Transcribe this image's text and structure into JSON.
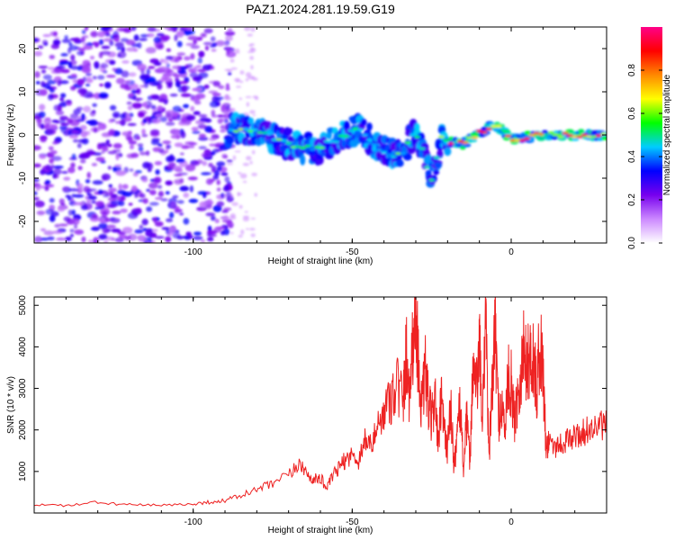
{
  "title": "PAZ1.2024.281.19.59.G19",
  "chart_data": [
    {
      "type": "heatmap",
      "xlabel": "Height of straight line (km)",
      "ylabel": "Frequency (Hz)",
      "xlim": [
        -150,
        30
      ],
      "ylim": [
        -25,
        25
      ],
      "xticks": [
        -100,
        -50,
        0
      ],
      "xtick_labels": [
        "-100",
        "-50",
        "0"
      ],
      "yticks": [
        -20,
        -10,
        0,
        10,
        20
      ],
      "ytick_labels": [
        "-20",
        "-10",
        "0",
        "10",
        "20"
      ],
      "colorbar": {
        "label": "Normalized spectral amplitude",
        "range": [
          0,
          1
        ],
        "ticks": [
          0.0,
          0.2,
          0.4,
          0.6,
          0.8
        ],
        "tick_labels": [
          "0.0",
          "0.2",
          "0.4",
          "0.6",
          "0.8"
        ],
        "colors": [
          "#ffffff",
          "#cc88ff",
          "#7700ee",
          "#0000ff",
          "#00ccff",
          "#00ff00",
          "#ffff00",
          "#ff8800",
          "#ff0000",
          "#ff0088"
        ]
      },
      "ridge": [
        {
          "x": -88,
          "y": 1.5
        },
        {
          "x": -80,
          "y": 1.0
        },
        {
          "x": -70,
          "y": -2.0
        },
        {
          "x": -62,
          "y": -3.5
        },
        {
          "x": -55,
          "y": -1.0
        },
        {
          "x": -48,
          "y": 1.5
        },
        {
          "x": -42,
          "y": -3.0
        },
        {
          "x": -35,
          "y": -5.0
        },
        {
          "x": -30,
          "y": 1.0
        },
        {
          "x": -25,
          "y": -10.5
        },
        {
          "x": -22,
          "y": -1.0
        },
        {
          "x": -15,
          "y": -2.0
        },
        {
          "x": -10,
          "y": 0.5
        },
        {
          "x": -5,
          "y": 2.5
        },
        {
          "x": 0,
          "y": -1.0
        },
        {
          "x": 10,
          "y": 0.0
        },
        {
          "x": 20,
          "y": 0.0
        },
        {
          "x": 30,
          "y": 0.0
        }
      ]
    },
    {
      "type": "line",
      "xlabel": "Height of straight line (km)",
      "ylabel": "SNR (10 * v/v)",
      "xlim": [
        -150,
        30
      ],
      "ylim": [
        0,
        5200
      ],
      "xticks": [
        -100,
        -50,
        0
      ],
      "xtick_labels": [
        "-100",
        "-50",
        "0"
      ],
      "yticks": [
        1000,
        2000,
        3000,
        4000,
        5000
      ],
      "ytick_labels": [
        "1000",
        "2000",
        "3000",
        "4000",
        "5000"
      ],
      "series": [
        {
          "color": "#ee2222",
          "x": [
            -150,
            -140,
            -130,
            -120,
            -110,
            -100,
            -95,
            -90,
            -85,
            -80,
            -75,
            -70,
            -66,
            -64,
            -62,
            -60,
            -58,
            -56,
            -54,
            -52,
            -50,
            -48,
            -46,
            -44,
            -42,
            -40,
            -38,
            -36,
            -34,
            -33,
            -32,
            -31,
            -30,
            -29,
            -28,
            -27,
            -26,
            -25,
            -24,
            -23,
            -22,
            -21,
            -20,
            -19,
            -18,
            -17,
            -16,
            -15,
            -14,
            -13,
            -12,
            -11,
            -10,
            -9,
            -8,
            -7,
            -6,
            -5,
            -4,
            -3,
            -2,
            -1,
            0,
            1,
            2,
            3,
            4,
            5,
            6,
            7,
            8,
            9,
            10,
            11,
            12,
            14,
            16,
            18,
            20,
            22,
            24,
            26,
            28,
            30
          ],
          "y": [
            200,
            180,
            250,
            200,
            180,
            220,
            260,
            300,
            420,
            560,
            700,
            900,
            1200,
            900,
            800,
            850,
            600,
            900,
            1100,
            1300,
            1400,
            1250,
            1800,
            1600,
            2100,
            2400,
            2800,
            3200,
            2600,
            3900,
            2900,
            4100,
            4950,
            3300,
            2500,
            3400,
            2600,
            2200,
            3000,
            1500,
            2700,
            1900,
            1600,
            2500,
            1200,
            1800,
            2600,
            1100,
            2200,
            1300,
            3500,
            2800,
            4000,
            2200,
            5150,
            1200,
            3000,
            4500,
            2300,
            2600,
            2000,
            3200,
            3100,
            2200,
            2900,
            3300,
            4000,
            3500,
            3800,
            3700,
            2900,
            4100,
            3500,
            1500,
            1800,
            1600,
            1700,
            1750,
            1850,
            1900,
            2000,
            2050,
            2100,
            2100
          ]
        }
      ]
    }
  ]
}
